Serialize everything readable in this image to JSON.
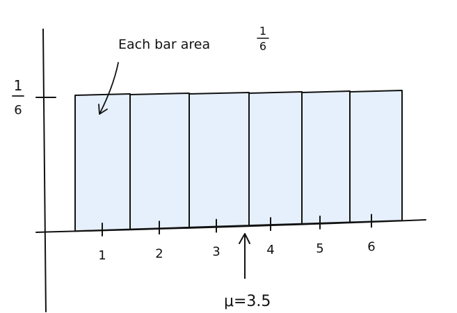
{
  "chart_data": {
    "type": "bar",
    "categories": [
      "1",
      "2",
      "3",
      "4",
      "5",
      "6"
    ],
    "values": [
      0.1667,
      0.1667,
      0.1667,
      0.1667,
      0.1667,
      0.1667
    ],
    "title": "",
    "xlabel": "",
    "ylabel": "",
    "ytick": {
      "numerator": "1",
      "denominator": "6",
      "value": 0.1667
    },
    "ylim": [
      0,
      0.2
    ],
    "grid": false,
    "colors": {
      "bar_fill": "#e6f0fc",
      "ink": "#111111"
    },
    "annotations": {
      "bar_area": {
        "text": "Each bar area",
        "numerator": "1",
        "denominator": "6"
      },
      "mean": {
        "text": "μ=3.5",
        "x": 3.5
      }
    }
  }
}
